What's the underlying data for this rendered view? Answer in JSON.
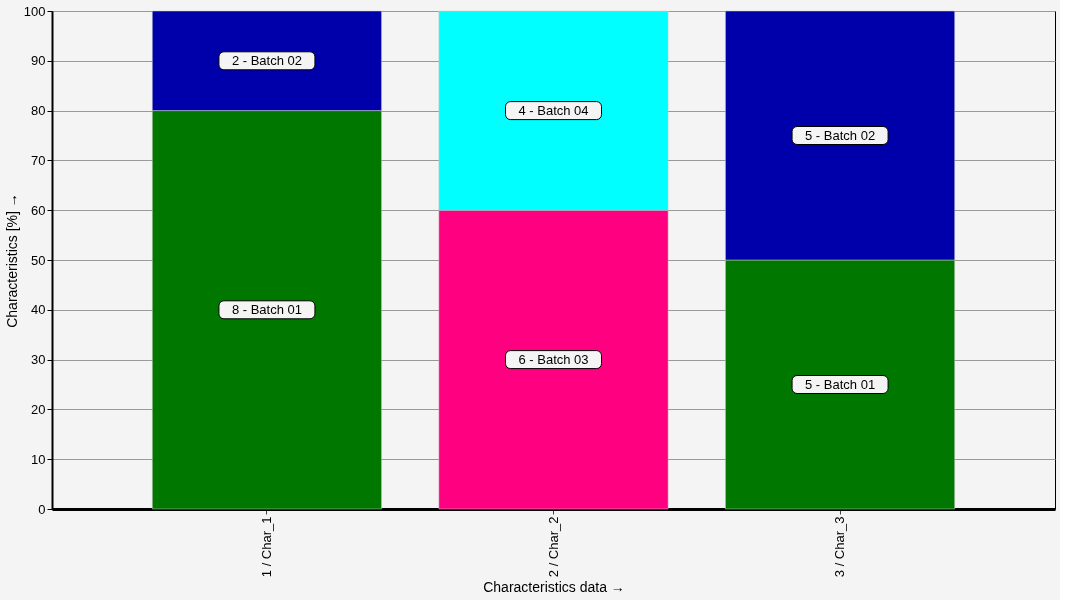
{
  "chart_data": {
    "type": "bar",
    "stacked": true,
    "xlabel": "Characteristics data →",
    "ylabel": "Characteristics [%] →",
    "categories": [
      "1 / Char_1",
      "2 / Char_2",
      "3 / Char_3"
    ],
    "series": [
      {
        "color": "#007800",
        "values": [
          80,
          null,
          50
        ]
      },
      {
        "color": "#0000aa",
        "values": [
          20,
          null,
          50
        ]
      },
      {
        "color": "#ff0080",
        "values": [
          null,
          60,
          null
        ]
      },
      {
        "color": "#00ffff",
        "values": [
          null,
          40,
          null
        ]
      }
    ],
    "annotations": [
      "8 - Batch 01",
      "5 - Batch 01",
      "2 - Batch 02",
      "5 - Batch 02",
      "6 - Batch 03",
      "4 - Batch 04"
    ],
    "ylim": [
      0,
      100
    ],
    "yticks": [
      0,
      10,
      20,
      30,
      40,
      50,
      60,
      70,
      80,
      90,
      100
    ],
    "grid": true
  }
}
